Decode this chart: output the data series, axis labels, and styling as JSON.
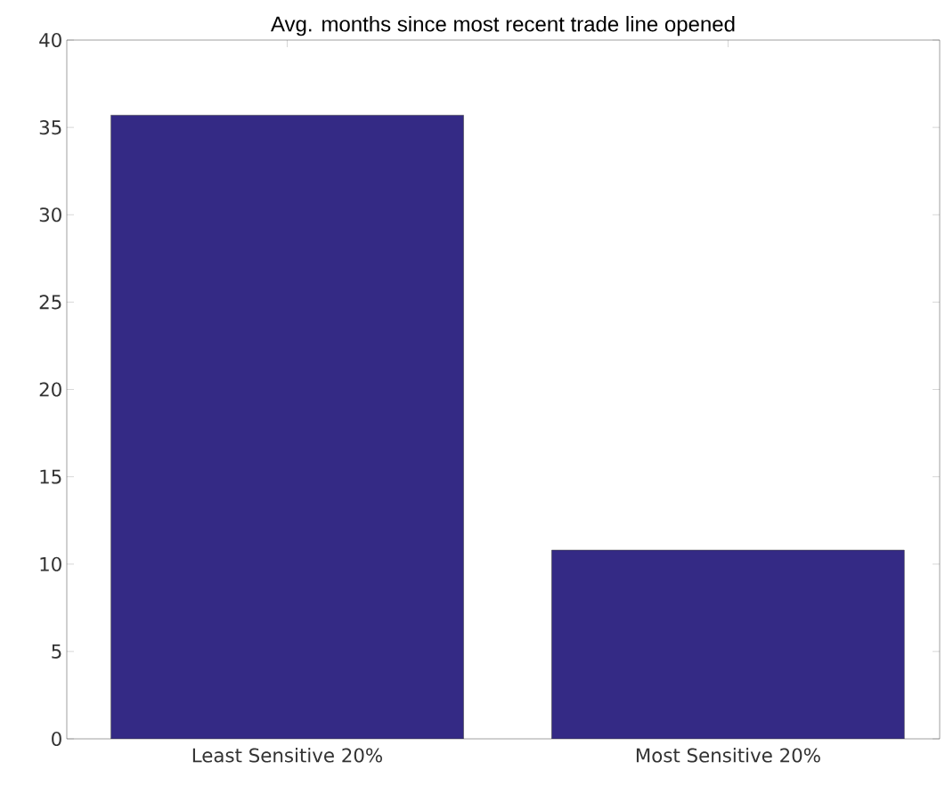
{
  "chart_data": {
    "type": "bar",
    "title": "Avg. months since most recent trade line opened",
    "categories": [
      "Least Sensitive 20%",
      "Most Sensitive 20%"
    ],
    "values": [
      35.7,
      10.8
    ],
    "color": "#342a85",
    "ylim": [
      0,
      40
    ],
    "yticks": [
      0,
      5,
      10,
      15,
      20,
      25,
      30,
      35,
      40
    ]
  }
}
